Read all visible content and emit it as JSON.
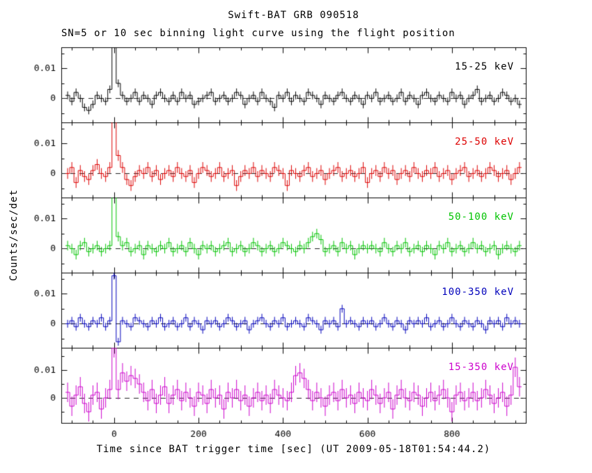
{
  "chart_data": {
    "type": "line",
    "style": "stacked-panel step-histogram light curves with vertical error bars",
    "title": "Swift-BAT GRB 090518",
    "subtitle": "SN=5 or 10 sec binning light curve using the flight position",
    "xlabel": "Time since BAT trigger time [sec] (UT 2009-05-18T01:54:44.2)",
    "ylabel": "Counts/sec/det",
    "grid": false,
    "legend_position": "inline top-right of each panel",
    "xlim": [
      -125,
      975
    ],
    "x_major_ticks": [
      0,
      200,
      400,
      600,
      800
    ],
    "x_tick_labels": [
      "0",
      "200",
      "400",
      "600",
      "800"
    ],
    "x_minor_tick_step": 50,
    "y_major_ticks": [
      0,
      0.01
    ],
    "y_tick_labels": [
      "0",
      "0.01"
    ],
    "y_minor_tick_step": 0.005,
    "zero_line": {
      "style": "dashed",
      "color": "#222222"
    },
    "frame_color": "#000000",
    "bin_start_x": -110,
    "bin_step_x": 10,
    "value_scale": 0.001,
    "panels": [
      {
        "name": "15-25 keV",
        "color": "#000000",
        "ylim_milli": [
          -8,
          17
        ],
        "err_milli": 1.3,
        "values_milli": [
          1,
          -1,
          2,
          0,
          -3,
          -4,
          -2,
          1,
          0,
          -1,
          3,
          22,
          5,
          1,
          -1,
          0,
          2,
          -1,
          1,
          0,
          -2,
          1,
          2,
          0,
          -1,
          1,
          -1,
          2,
          0,
          1,
          -2,
          -1,
          0,
          1,
          2,
          -1,
          0,
          1,
          -1,
          0,
          2,
          1,
          -2,
          0,
          1,
          -1,
          2,
          0,
          -1,
          -3,
          1,
          0,
          2,
          -1,
          1,
          0,
          -1,
          2,
          1,
          0,
          -2,
          1,
          0,
          -1,
          1,
          2,
          0,
          -1,
          1,
          0,
          -2,
          1,
          0,
          2,
          -1,
          0,
          1,
          -1,
          0,
          2,
          -1,
          1,
          0,
          -2,
          1,
          2,
          0,
          -1,
          1,
          0,
          -1,
          2,
          0,
          1,
          -2,
          0,
          1,
          3,
          -1,
          0,
          1,
          -1,
          0,
          2,
          1,
          -1,
          0,
          -2
        ]
      },
      {
        "name": "25-50 keV",
        "color": "#dd0000",
        "ylim_milli": [
          -8,
          17
        ],
        "err_milli": 1.8,
        "values_milli": [
          0,
          2,
          -3,
          1,
          -1,
          -2,
          1,
          3,
          0,
          -1,
          2,
          19,
          6,
          2,
          -2,
          -4,
          -1,
          1,
          0,
          2,
          -1,
          1,
          -2,
          0,
          1,
          -1,
          2,
          0,
          -1,
          1,
          -3,
          0,
          2,
          1,
          -1,
          0,
          2,
          -1,
          0,
          1,
          -4,
          -1,
          1,
          0,
          2,
          -1,
          1,
          0,
          -1,
          2,
          1,
          0,
          -4,
          1,
          0,
          -1,
          1,
          2,
          -1,
          0,
          1,
          -2,
          0,
          1,
          2,
          -1,
          0,
          1,
          -1,
          0,
          2,
          -3,
          0,
          1,
          -1,
          2,
          0,
          1,
          -2,
          0,
          1,
          -1,
          2,
          0,
          -1,
          1,
          0,
          2,
          -1,
          0,
          1,
          -2,
          0,
          1,
          2,
          -1,
          0,
          1,
          -1,
          0,
          2,
          1,
          -1,
          0,
          1,
          -2,
          0,
          2
        ]
      },
      {
        "name": "50-100 keV",
        "color": "#00c300",
        "ylim_milli": [
          -8,
          17
        ],
        "err_milli": 1.6,
        "values_milli": [
          1,
          0,
          -2,
          1,
          2,
          -1,
          0,
          1,
          -1,
          0,
          1,
          21,
          4,
          1,
          2,
          -1,
          0,
          1,
          -2,
          1,
          0,
          -1,
          1,
          0,
          2,
          -1,
          0,
          1,
          -1,
          2,
          0,
          -2,
          1,
          0,
          1,
          -1,
          0,
          1,
          2,
          -1,
          0,
          1,
          -1,
          0,
          2,
          1,
          -1,
          0,
          1,
          -1,
          0,
          2,
          1,
          0,
          -1,
          1,
          0,
          2,
          4,
          5,
          3,
          -1,
          0,
          1,
          -1,
          2,
          0,
          1,
          -2,
          0,
          1,
          0,
          1,
          0,
          -1,
          2,
          0,
          -1,
          1,
          0,
          2,
          -1,
          0,
          1,
          -1,
          1,
          0,
          -2,
          1,
          0,
          2,
          -1,
          0,
          1,
          -1,
          0,
          2,
          0,
          1,
          -1,
          0,
          1,
          -2,
          0,
          1,
          0,
          -1,
          1
        ]
      },
      {
        "name": "100-350 keV",
        "color": "#0000bb",
        "ylim_milli": [
          -8,
          17
        ],
        "err_milli": 1.3,
        "values_milli": [
          0,
          1,
          -1,
          2,
          0,
          -1,
          1,
          0,
          2,
          -1,
          1,
          16,
          -6,
          1,
          0,
          -1,
          2,
          1,
          0,
          -1,
          1,
          0,
          2,
          -1,
          0,
          1,
          -1,
          0,
          2,
          -1,
          1,
          0,
          -2,
          1,
          0,
          1,
          -1,
          0,
          2,
          1,
          -1,
          0,
          1,
          -2,
          0,
          1,
          2,
          0,
          -1,
          1,
          0,
          2,
          -1,
          0,
          1,
          0,
          -1,
          2,
          1,
          0,
          -2,
          1,
          0,
          1,
          -1,
          5,
          0,
          1,
          0,
          -1,
          1,
          0,
          1,
          -1,
          0,
          2,
          0,
          -1,
          1,
          0,
          -2,
          1,
          0,
          1,
          0,
          2,
          -1,
          0,
          1,
          -1,
          0,
          2,
          0,
          -1,
          1,
          0,
          -1,
          1,
          0,
          -2,
          1,
          0,
          1,
          -1,
          2,
          0,
          1,
          0
        ]
      },
      {
        "name": "15-350 keV",
        "color": "#cc00cc",
        "ylim_milli": [
          -9,
          18
        ],
        "err_milli": 3.5,
        "values_milli": [
          2,
          -3,
          1,
          4,
          -2,
          -5,
          1,
          2,
          -4,
          0,
          3,
          18,
          3,
          9,
          6,
          8,
          7,
          5,
          2,
          -1,
          3,
          -2,
          1,
          4,
          -2,
          1,
          3,
          -1,
          2,
          0,
          -3,
          2,
          1,
          -2,
          3,
          0,
          1,
          -4,
          2,
          0,
          3,
          -1,
          1,
          -3,
          0,
          2,
          -1,
          1,
          -2,
          3,
          1,
          0,
          -1,
          2,
          8,
          9,
          7,
          3,
          -1,
          2,
          0,
          -3,
          1,
          2,
          -1,
          3,
          0,
          1,
          -2,
          2,
          0,
          -1,
          3,
          1,
          -2,
          0,
          2,
          -4,
          1,
          3,
          0,
          -1,
          2,
          1,
          -3,
          0,
          2,
          -1,
          1,
          3,
          0,
          -5,
          1,
          2,
          -1,
          0,
          2,
          -1,
          0,
          3,
          1,
          -2,
          0,
          2,
          -3,
          1,
          11,
          4
        ]
      }
    ]
  }
}
